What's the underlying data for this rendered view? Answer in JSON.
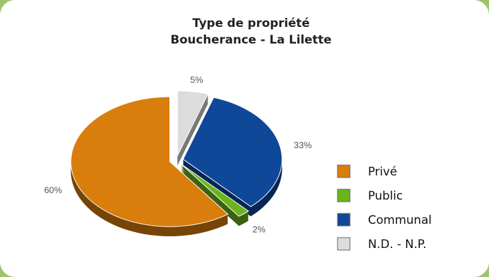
{
  "chart_data": {
    "type": "pie",
    "title": [
      "Type de propriété",
      "Boucherance - La Lilette"
    ],
    "categories": [
      "Privé",
      "Public",
      "Communal",
      "N.D. - N.P."
    ],
    "values": [
      60,
      2,
      33,
      5
    ],
    "value_labels": [
      "60%",
      "2%",
      "33%",
      "5%"
    ],
    "colors": [
      "#d97d0d",
      "#6cb41c",
      "#0f4799",
      "#dcdcdc"
    ],
    "legend": "right"
  }
}
